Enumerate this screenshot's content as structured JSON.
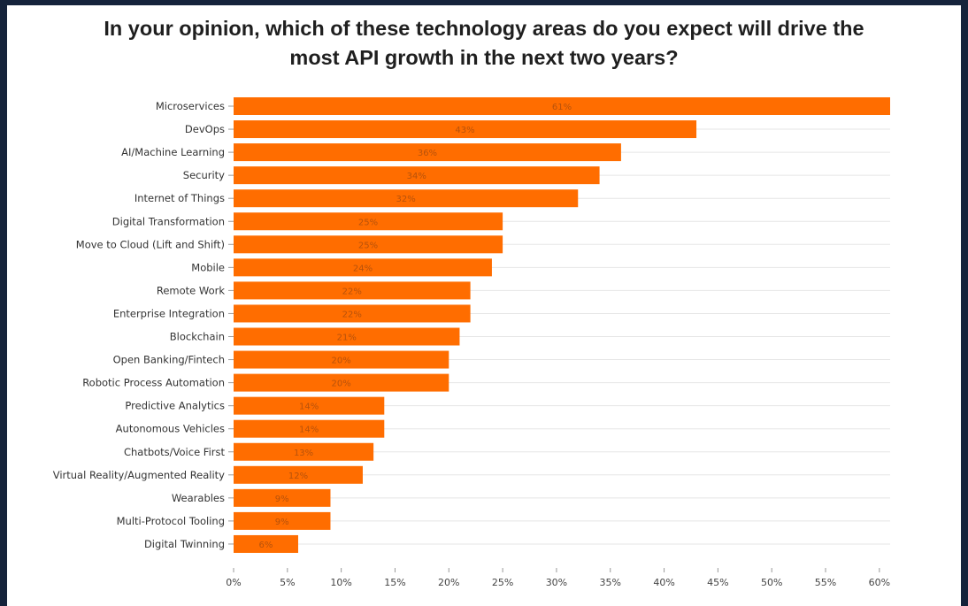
{
  "chart_data": {
    "type": "bar",
    "orientation": "horizontal",
    "title_lines": [
      "In your opinion, which of these technology areas do you expect will drive the",
      "most API growth in the next two years?"
    ],
    "categories": [
      "Microservices",
      "DevOps",
      "AI/Machine Learning",
      "Security",
      "Internet of Things",
      "Digital Transformation",
      "Move to Cloud (Lift and Shift)",
      "Mobile",
      "Remote Work",
      "Enterprise Integration",
      "Blockchain",
      "Open Banking/Fintech",
      "Robotic Process Automation",
      "Predictive Analytics",
      "Autonomous Vehicles",
      "Chatbots/Voice First",
      "Virtual Reality/Augmented Reality",
      "Wearables",
      "Multi-Protocol Tooling",
      "Digital Twinning"
    ],
    "values": [
      61,
      43,
      36,
      34,
      32,
      25,
      25,
      24,
      22,
      22,
      21,
      20,
      20,
      14,
      14,
      13,
      12,
      9,
      9,
      6
    ],
    "data_labels": [
      "61%",
      "43%",
      "36%",
      "34%",
      "32%",
      "25%",
      "25%",
      "24%",
      "22%",
      "22%",
      "21%",
      "20%",
      "20%",
      "14%",
      "14%",
      "13%",
      "12%",
      "9%",
      "9%",
      "6%"
    ],
    "xticks": [
      "0%",
      "5%",
      "10%",
      "15%",
      "20%",
      "25%",
      "30%",
      "35%",
      "40%",
      "45%",
      "50%",
      "55%",
      "60%"
    ],
    "xlim": [
      0,
      61
    ],
    "grid": true,
    "bar_color": "#ff6d00",
    "grid_color": "#e5e5e5",
    "background_color": "#ffffff",
    "frame_color": "#15233b"
  }
}
